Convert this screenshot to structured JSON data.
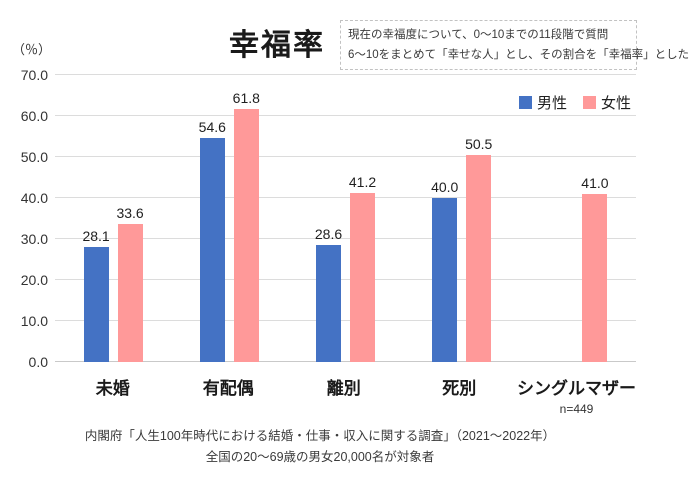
{
  "title": "幸福率",
  "note": {
    "line1": "現在の幸福度について、0〜10までの11段階で質問",
    "line2": "6〜10をまとめて「幸せな人」とし、その割合を「幸福率」とした"
  },
  "chart_data": {
    "type": "bar",
    "title": "幸福率",
    "ylabel": "（％）",
    "xlabel": "",
    "ylim": [
      0,
      70
    ],
    "yticks": [
      0,
      10,
      20,
      30,
      40,
      50,
      60,
      70
    ],
    "grid": true,
    "legend_position": "top-right",
    "categories": [
      "未婚",
      "有配偶",
      "離別",
      "死別",
      "シングルマザー"
    ],
    "series": [
      {
        "key": "male",
        "name": "男性",
        "color": "#4472C4",
        "values": [
          28.1,
          54.6,
          28.6,
          40.0,
          null
        ]
      },
      {
        "key": "female",
        "name": "女性",
        "color": "#FF9999",
        "values": [
          33.6,
          61.8,
          41.2,
          50.5,
          41.0
        ]
      }
    ],
    "category_note": {
      "index": 4,
      "text": "n=449"
    }
  },
  "footer": {
    "line1": "内閣府「人生100年時代における結婚・仕事・収入に関する調査」（2021〜2022年）",
    "line2": "全国の20〜69歳の男女20,000名が対象者"
  }
}
